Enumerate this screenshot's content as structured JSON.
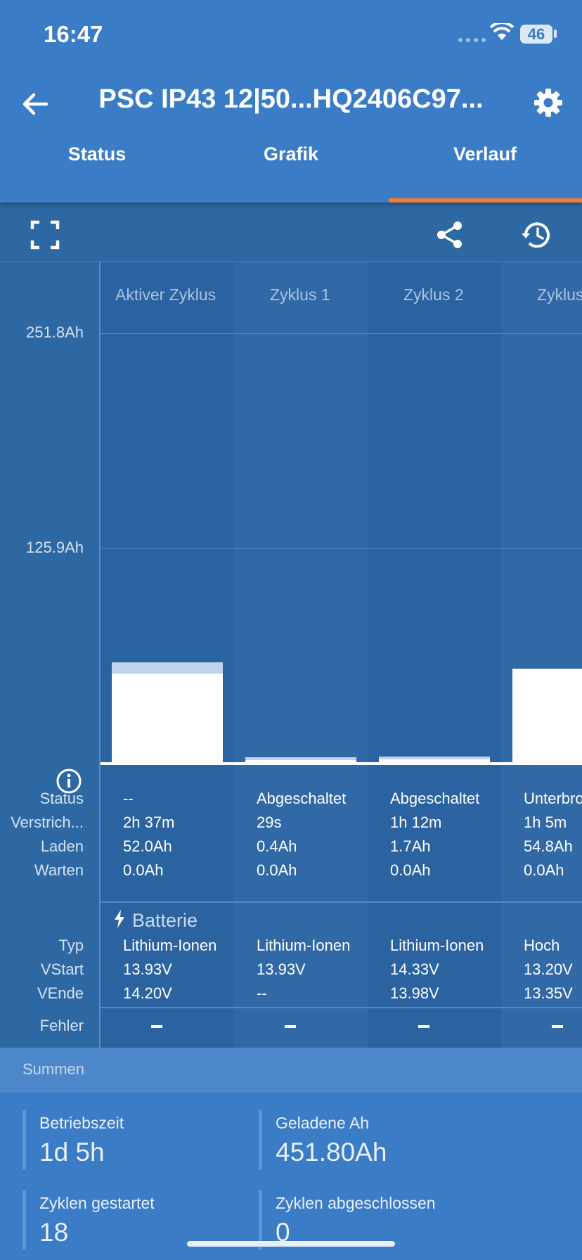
{
  "status_bar": {
    "time": "16:47",
    "battery": "46"
  },
  "app_bar": {
    "title": "PSC IP43 12|50...HQ2406C97..."
  },
  "tabs": [
    {
      "label": "Status",
      "active": false
    },
    {
      "label": "Grafik",
      "active": false
    },
    {
      "label": "Verlauf",
      "active": true
    }
  ],
  "toolbar": {
    "icons": [
      "fullscreen-icon",
      "share-icon",
      "history-icon"
    ]
  },
  "chart": {
    "y_ticks": [
      "251.8Ah",
      "125.9Ah"
    ],
    "columns": [
      "Aktiver Zyklus",
      "Zyklus 1",
      "Zyklus 2",
      "Zyklus"
    ],
    "row_labels": {
      "status": "Status",
      "elapsed": "Verstrich...",
      "charge": "Laden",
      "wait": "Warten",
      "battery_section": "Batterie",
      "type": "Typ",
      "vstart": "VStart",
      "vend": "VEnde",
      "error": "Fehler"
    },
    "rows": {
      "status": [
        "--",
        "Abgeschaltet",
        "Abgeschaltet",
        "Unterbro"
      ],
      "elapsed": [
        "2h 37m",
        "29s",
        "1h 12m",
        "1h 5m"
      ],
      "charge": [
        "52.0Ah",
        "0.4Ah",
        "1.7Ah",
        "54.8Ah"
      ],
      "wait": [
        "0.0Ah",
        "0.0Ah",
        "0.0Ah",
        "0.0Ah"
      ],
      "type": [
        "Lithium-Ionen",
        "Lithium-Ionen",
        "Lithium-Ionen",
        "Hoch"
      ],
      "vstart": [
        "13.93V",
        "13.93V",
        "14.33V",
        "13.20V"
      ],
      "vend": [
        "14.20V",
        "--",
        "13.98V",
        "13.35V"
      ]
    }
  },
  "chart_data": {
    "type": "bar",
    "categories": [
      "Aktiver Zyklus",
      "Zyklus 1",
      "Zyklus 2",
      "Zyklus"
    ],
    "series": [
      {
        "values": [
          52.0,
          0.4,
          1.7,
          54.8
        ]
      }
    ],
    "ylabel": "",
    "ylim": [
      0,
      251.8
    ],
    "y_ticks": [
      125.9,
      251.8
    ],
    "grid": true
  },
  "summary": {
    "header": "Summen",
    "stats": [
      {
        "label": "Betriebszeit",
        "value": "1d 5h"
      },
      {
        "label": "Geladene Ah",
        "value": "451.80Ah"
      },
      {
        "label": "Zyklen gestartet",
        "value": "18"
      },
      {
        "label": "Zyklen abgeschlossen",
        "value": "0"
      }
    ]
  },
  "colors": {
    "accent": "#ec7f38",
    "primary": "#3b7cc6",
    "chart_bg": "#2d68a3"
  }
}
